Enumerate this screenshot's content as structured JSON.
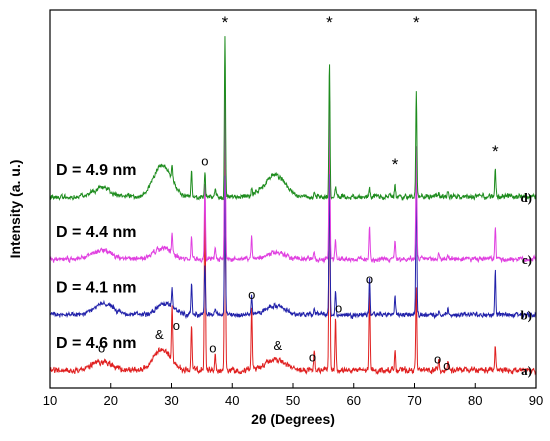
{
  "chart_data": {
    "type": "line",
    "xlabel": "2θ (Degrees)",
    "ylabel": "Intensity (a. u.)",
    "xlim": [
      10,
      90
    ],
    "xticks": [
      "10",
      "20",
      "30",
      "40",
      "50",
      "60",
      "70",
      "80",
      "90"
    ],
    "grid": false,
    "series": [
      {
        "key": "a",
        "label": "a)",
        "size_label": "D = 4.6 nm",
        "color": "#e02020",
        "baseline": 0.0,
        "noise": 0.018,
        "humps": [
          [
            18.5,
            0.04,
            1.5
          ],
          [
            28.5,
            0.09,
            1.4
          ],
          [
            47.0,
            0.05,
            1.6
          ]
        ],
        "peaks": [
          [
            30.1,
            0.25
          ],
          [
            33.3,
            0.2
          ],
          [
            35.5,
            0.82
          ],
          [
            37.2,
            0.08
          ],
          [
            38.8,
            1.25
          ],
          [
            43.2,
            0.28
          ],
          [
            53.5,
            0.08
          ],
          [
            56.0,
            1.25
          ],
          [
            57.0,
            0.24
          ],
          [
            62.6,
            0.35
          ],
          [
            66.8,
            0.1
          ],
          [
            70.3,
            0.38
          ],
          [
            74.0,
            0.06
          ],
          [
            75.5,
            0.05
          ],
          [
            83.3,
            0.11
          ]
        ]
      },
      {
        "key": "b",
        "label": "b)",
        "size_label": "D = 4.1 nm",
        "color": "#2222aa",
        "baseline": 0.25,
        "noise": 0.015,
        "humps": [
          [
            18.8,
            0.05,
            1.5
          ],
          [
            29.0,
            0.05,
            1.4
          ],
          [
            47.0,
            0.04,
            1.6
          ]
        ],
        "peaks": [
          [
            30.1,
            0.08
          ],
          [
            33.3,
            0.15
          ],
          [
            35.5,
            0.22
          ],
          [
            37.2,
            0.03
          ],
          [
            38.8,
            0.62
          ],
          [
            43.2,
            0.09
          ],
          [
            53.5,
            0.03
          ],
          [
            56.0,
            0.65
          ],
          [
            57.0,
            0.1
          ],
          [
            62.6,
            0.17
          ],
          [
            66.8,
            0.09
          ],
          [
            70.3,
            0.6
          ],
          [
            74.0,
            0.02
          ],
          [
            75.5,
            0.02
          ],
          [
            83.3,
            0.2
          ]
        ]
      },
      {
        "key": "c",
        "label": "c)",
        "size_label": "D = 4.4 nm",
        "color": "#e040e0",
        "baseline": 0.5,
        "noise": 0.015,
        "humps": [
          [
            18.5,
            0.04,
            1.5
          ],
          [
            28.5,
            0.05,
            1.4
          ],
          [
            47.0,
            0.03,
            1.6
          ]
        ],
        "peaks": [
          [
            30.1,
            0.1
          ],
          [
            33.3,
            0.1
          ],
          [
            35.5,
            0.35
          ],
          [
            37.2,
            0.04
          ],
          [
            38.8,
            0.75
          ],
          [
            43.2,
            0.09
          ],
          [
            53.5,
            0.03
          ],
          [
            56.0,
            0.75
          ],
          [
            57.0,
            0.1
          ],
          [
            62.6,
            0.15
          ],
          [
            66.8,
            0.08
          ],
          [
            70.3,
            0.5
          ],
          [
            74.0,
            0.03
          ],
          [
            75.5,
            0.02
          ],
          [
            83.3,
            0.14
          ]
        ]
      },
      {
        "key": "d",
        "label": "d)",
        "size_label": "D = 4.9 nm",
        "color": "#1e8c1e",
        "baseline": 0.78,
        "noise": 0.015,
        "humps": [
          [
            18.5,
            0.04,
            1.5
          ],
          [
            28.5,
            0.14,
            1.5
          ],
          [
            47.0,
            0.1,
            1.6
          ]
        ],
        "peaks": [
          [
            30.1,
            0.06
          ],
          [
            33.3,
            0.11
          ],
          [
            35.5,
            0.11
          ],
          [
            37.2,
            0.03
          ],
          [
            38.8,
            0.72
          ],
          [
            43.2,
            0.04
          ],
          [
            53.5,
            0.02
          ],
          [
            56.0,
            0.6
          ],
          [
            57.0,
            0.05
          ],
          [
            62.6,
            0.05
          ],
          [
            66.8,
            0.06
          ],
          [
            70.3,
            0.48
          ],
          [
            74.0,
            0.02
          ],
          [
            75.5,
            0.02
          ],
          [
            83.3,
            0.12
          ]
        ]
      }
    ],
    "annotations": [
      {
        "symbol": "*",
        "x": 38.8,
        "y": 1.54,
        "type": "star"
      },
      {
        "symbol": "*",
        "x": 56.0,
        "y": 1.54,
        "type": "star"
      },
      {
        "symbol": "*",
        "x": 70.3,
        "y": 1.54,
        "type": "star"
      },
      {
        "symbol": "*",
        "x": 66.8,
        "y": 0.9,
        "type": "star"
      },
      {
        "symbol": "*",
        "x": 83.3,
        "y": 0.96,
        "type": "star"
      },
      {
        "symbol": "o",
        "x": 35.5,
        "y": 0.92,
        "type": "circle"
      },
      {
        "symbol": "o",
        "x": 18.5,
        "y": 0.08,
        "type": "circle"
      },
      {
        "symbol": "o",
        "x": 30.8,
        "y": 0.18,
        "type": "circle"
      },
      {
        "symbol": "o",
        "x": 36.8,
        "y": 0.08,
        "type": "circle"
      },
      {
        "symbol": "o",
        "x": 43.2,
        "y": 0.32,
        "type": "circle"
      },
      {
        "symbol": "o",
        "x": 53.2,
        "y": 0.04,
        "type": "circle"
      },
      {
        "symbol": "o",
        "x": 57.5,
        "y": 0.26,
        "type": "circle"
      },
      {
        "symbol": "o",
        "x": 62.6,
        "y": 0.39,
        "type": "circle"
      },
      {
        "symbol": "o",
        "x": 73.8,
        "y": 0.03,
        "type": "circle"
      },
      {
        "symbol": "o",
        "x": 75.3,
        "y": 0.0,
        "type": "circle"
      },
      {
        "symbol": "&",
        "x": 28.0,
        "y": 0.14,
        "type": "amp"
      },
      {
        "symbol": "&",
        "x": 47.5,
        "y": 0.09,
        "type": "amp"
      }
    ]
  }
}
